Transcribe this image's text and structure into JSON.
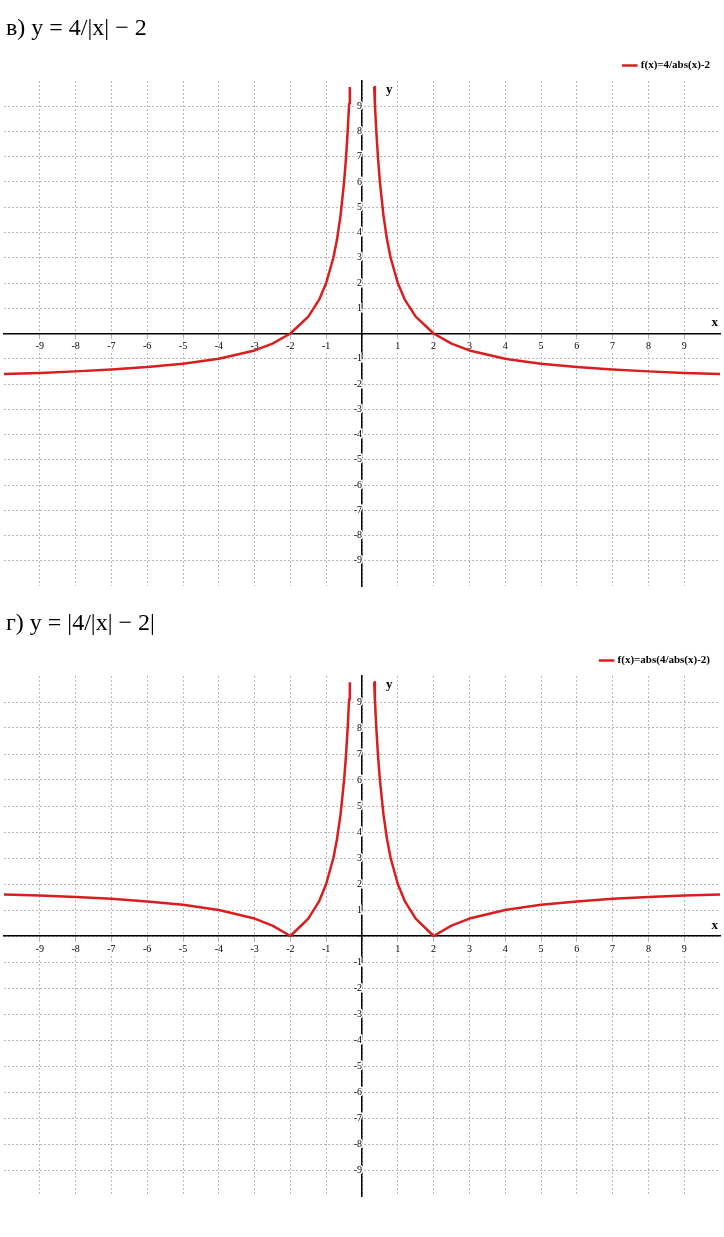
{
  "chart_data": [
    {
      "type": "line",
      "title": "в) y = 4/|x| − 2",
      "xlabel": "x",
      "ylabel": "y",
      "xlim": [
        -10,
        10
      ],
      "ylim": [
        -10,
        10
      ],
      "xticks": [
        -9,
        -8,
        -7,
        -6,
        -5,
        -4,
        -3,
        -2,
        -1,
        {
          "value": 0,
          "label": null
        },
        1,
        2,
        3,
        4,
        5,
        6,
        7,
        8,
        9
      ],
      "yticks": [
        -9,
        -8,
        -7,
        -6,
        -5,
        -4,
        -3,
        -2,
        -1,
        {
          "value": 0,
          "label": null
        },
        1,
        2,
        3,
        4,
        5,
        6,
        7,
        8,
        9
      ],
      "grid": true,
      "legend": "top right",
      "marker": "none",
      "line_style": "solid",
      "series": [
        {
          "name": "f(x)=4/abs(x)-2",
          "color": "#d81e1e",
          "x": [
            -10,
            -9,
            -8,
            -7,
            -6,
            -5,
            -4,
            -3,
            -2.5,
            -2,
            -1.5,
            -1.2,
            -1,
            -0.8,
            -0.7,
            -0.6,
            -0.5,
            -0.45,
            -0.4,
            -0.36,
            -0.34,
            0,
            0.34,
            0.36,
            0.4,
            0.45,
            0.5,
            0.6,
            0.7,
            0.8,
            1,
            1.2,
            1.5,
            2,
            2.5,
            3,
            4,
            5,
            6,
            7,
            8,
            9,
            10
          ],
          "values": [
            -1.6,
            -1.56,
            -1.5,
            -1.43,
            -1.33,
            -1.2,
            -1,
            -0.67,
            -0.4,
            0,
            0.67,
            1.33,
            2,
            3,
            3.71,
            4.67,
            6,
            6.89,
            8,
            9.11,
            9.76,
            null,
            9.76,
            9.11,
            8,
            6.89,
            6,
            4.67,
            3.71,
            3,
            2,
            1.33,
            0.67,
            0,
            -0.4,
            -0.67,
            -1,
            -1.2,
            -1.33,
            -1.43,
            -1.5,
            -1.56,
            -1.6
          ]
        }
      ]
    },
    {
      "type": "line",
      "title": "г) y = |4/|x| − 2|",
      "xlabel": "x",
      "ylabel": "y",
      "xlim": [
        -10,
        10
      ],
      "ylim": [
        -10,
        10
      ],
      "xticks": [
        -9,
        -8,
        -7,
        -6,
        -5,
        -4,
        -3,
        -2,
        -1,
        {
          "value": 0,
          "label": null
        },
        1,
        2,
        3,
        4,
        5,
        6,
        7,
        8,
        9
      ],
      "yticks": [
        -9,
        -8,
        -7,
        -6,
        -5,
        -4,
        -3,
        -2,
        -1,
        {
          "value": 0,
          "label": null
        },
        1,
        2,
        3,
        4,
        5,
        6,
        7,
        8,
        9
      ],
      "grid": true,
      "legend": "top right",
      "marker": "none",
      "line_style": "solid",
      "series": [
        {
          "name": "f(x)=abs(4/abs(x)-2)",
          "color": "#d81e1e",
          "x": [
            -10,
            -9,
            -8,
            -7,
            -6,
            -5,
            -4,
            -3,
            -2.5,
            -2,
            -1.5,
            -1.2,
            -1,
            -0.8,
            -0.7,
            -0.6,
            -0.5,
            -0.45,
            -0.4,
            -0.36,
            -0.34,
            0,
            0.34,
            0.36,
            0.4,
            0.45,
            0.5,
            0.6,
            0.7,
            0.8,
            1,
            1.2,
            1.5,
            2,
            2.5,
            3,
            4,
            5,
            6,
            7,
            8,
            9,
            10
          ],
          "values": [
            1.6,
            1.56,
            1.5,
            1.43,
            1.33,
            1.2,
            1,
            0.67,
            0.4,
            0,
            0.67,
            1.33,
            2,
            3,
            3.71,
            4.67,
            6,
            6.89,
            8,
            9.11,
            9.76,
            null,
            9.76,
            9.11,
            8,
            6.89,
            6,
            4.67,
            3.71,
            3,
            2,
            1.33,
            0.67,
            0,
            0.4,
            0.67,
            1,
            1.2,
            1.33,
            1.43,
            1.5,
            1.56,
            1.6
          ]
        }
      ]
    }
  ]
}
